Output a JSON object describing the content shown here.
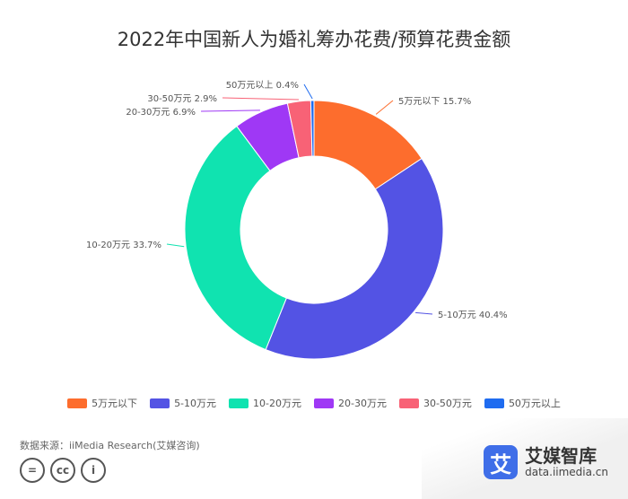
{
  "chart_data": {
    "type": "pie",
    "title": "2022年中国新人为婚礼筹办花费/预算花费金额",
    "categories": [
      "5万元以下",
      "5-10万元",
      "10-20万元",
      "20-30万元",
      "30-50万元",
      "50万元以上"
    ],
    "values": [
      15.7,
      40.4,
      33.7,
      6.9,
      2.9,
      0.4
    ],
    "value_labels": [
      "15.7%",
      "40.4%",
      "33.7%",
      "6.9%",
      "2.9%",
      "0.4%"
    ],
    "colors": [
      "#fd6d2d",
      "#5353e4",
      "#10e3b0",
      "#9f38f5",
      "#f86276",
      "#1f6cf0"
    ],
    "donut": true,
    "legend_position": "bottom"
  },
  "source": "数据来源：iiMedia Research(艾媒咨询)",
  "license_icons": [
    "=",
    "cc",
    "i"
  ],
  "brand": {
    "logo_char": "艾",
    "name": "艾媒智库",
    "url": "data.iimedia.cn"
  }
}
